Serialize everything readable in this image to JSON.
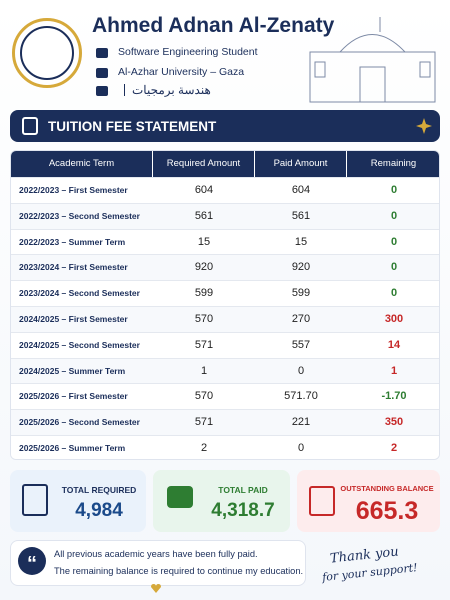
{
  "header": {
    "name": "Ahmed Adnan Al-Zenaty",
    "role": "Software Engineering Student",
    "university": "Al-Azhar University – Gaza",
    "major_arabic": "هندسة برمجيات"
  },
  "statement": {
    "title": "TUITION FEE STATEMENT"
  },
  "table": {
    "columns": [
      "Academic Term",
      "Required Amount",
      "Paid Amount",
      "Remaining"
    ],
    "rows": [
      [
        "2022/2023 – First Semester",
        "604",
        "604",
        "0"
      ],
      [
        "2022/2023 – Second Semester",
        "561",
        "561",
        "0"
      ],
      [
        "2022/2023 – Summer Term",
        "15",
        "15",
        "0"
      ],
      [
        "2023/2024 – First Semester",
        "920",
        "920",
        "0"
      ],
      [
        "2023/2024 – Second Semester",
        "599",
        "599",
        "0"
      ],
      [
        "2024/2025 – First Semester",
        "570",
        "270",
        "300"
      ],
      [
        "2024/2025 – Second Semester",
        "571",
        "557",
        "14"
      ],
      [
        "2024/2025 – Summer Term",
        "1",
        "0",
        "1"
      ],
      [
        "2025/2026 – First Semester",
        "570",
        "571.70",
        "-1.70"
      ],
      [
        "2025/2026 – Second Semester",
        "571",
        "221",
        "350"
      ],
      [
        "2025/2026 – Summer Term",
        "2",
        "0",
        "2"
      ]
    ]
  },
  "summary": {
    "total_required": {
      "label": "TOTAL REQUIRED",
      "value": "4,984"
    },
    "total_paid": {
      "label": "TOTAL PAID",
      "value": "4,318.7"
    },
    "outstanding": {
      "label": "OUTSTANDING BALANCE",
      "value": "665.3"
    }
  },
  "note": {
    "lines": [
      "All previous academic years have been fully paid.",
      "The remaining balance is required to continue my education."
    ]
  },
  "thanks": {
    "lines": [
      "Thank you",
      "for your support!"
    ]
  }
}
